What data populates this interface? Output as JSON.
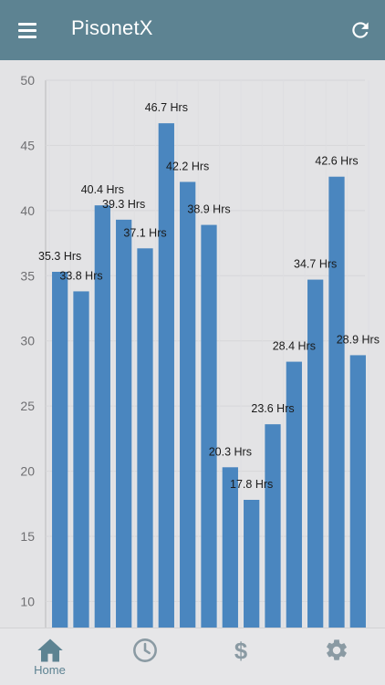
{
  "appbar": {
    "title": "PisonetX",
    "menu_icon": "menu-icon",
    "refresh_icon": "refresh-icon",
    "color": "#5d8392"
  },
  "chart_data": {
    "type": "bar",
    "title": "",
    "xlabel": "",
    "ylabel": "",
    "ylim": [
      8,
      50
    ],
    "yticks": [
      10,
      15,
      20,
      25,
      30,
      35,
      40,
      45,
      50
    ],
    "grid": true,
    "bar_color": "#4a86bf",
    "values": [
      35.3,
      33.8,
      40.4,
      39.3,
      37.1,
      46.7,
      42.2,
      38.9,
      20.3,
      17.8,
      23.6,
      28.4,
      34.7,
      42.6,
      28.9
    ],
    "labels": [
      "35.3 Hrs",
      "33.8 Hrs",
      "40.4 Hrs",
      "39.3 Hrs",
      "37.1 Hrs",
      "46.7 Hrs",
      "42.2 Hrs",
      "38.9 Hrs",
      "20.3 Hrs",
      "17.8 Hrs",
      "23.6 Hrs",
      "28.4 Hrs",
      "34.7 Hrs",
      "42.6 Hrs",
      "28.9 Hrs"
    ]
  },
  "bottom_nav": {
    "active_color": "#5d8392",
    "inactive_color": "#8a9aa3",
    "items": [
      {
        "icon": "home-icon",
        "label": "Home",
        "active": true
      },
      {
        "icon": "clock-icon",
        "label": "",
        "active": false
      },
      {
        "icon": "dollar-icon",
        "label": "",
        "active": false
      },
      {
        "icon": "gear-icon",
        "label": "",
        "active": false
      }
    ]
  }
}
